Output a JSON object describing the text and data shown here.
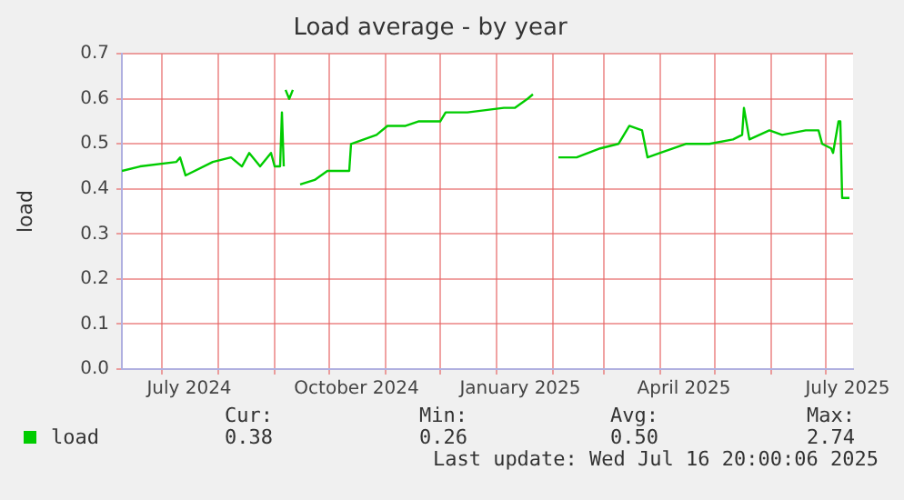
{
  "chart_data": {
    "type": "line",
    "title": "Load average - by year",
    "ylabel": "load",
    "x": [
      "2024-06-09",
      "2024-06-19",
      "2024-07-09",
      "2024-07-11",
      "2024-07-14",
      "2024-07-29",
      "2024-08-08",
      "2024-08-14",
      "2024-08-18",
      "2024-08-24",
      "2024-08-30",
      "2024-09-01",
      "2024-09-04",
      "2024-09-05",
      "2024-09-06",
      "2024-09-06T12:00",
      "2024-09-07",
      "2024-09-09",
      "2024-09-11",
      "2024-09-12",
      "2024-09-15",
      "2024-09-23",
      "2024-09-30",
      "2024-10-10",
      "2024-10-12",
      "2024-10-13",
      "2024-10-20",
      "2024-10-27",
      "2024-11-02",
      "2024-11-12",
      "2024-11-19",
      "2024-11-26",
      "2024-12-01",
      "2024-12-04",
      "2024-12-16",
      "2025-01-05",
      "2025-01-11",
      "2025-01-18",
      "2025-01-21",
      "2025-01-28",
      "2025-02-04",
      "2025-02-14",
      "2025-02-27",
      "2025-03-09",
      "2025-03-15",
      "2025-03-22",
      "2025-03-25",
      "2025-04-01",
      "2025-04-15",
      "2025-04-28",
      "2025-05-11",
      "2025-05-16",
      "2025-05-17",
      "2025-05-20",
      "2025-05-31",
      "2025-06-07",
      "2025-06-20",
      "2025-06-27",
      "2025-06-29",
      "2025-07-04",
      "2025-07-05",
      "2025-07-08",
      "2025-07-09",
      "2025-07-10",
      "2025-07-14"
    ],
    "series": [
      {
        "name": "load",
        "color": "#00cc00",
        "values": [
          0.44,
          0.45,
          0.46,
          0.47,
          0.43,
          0.46,
          0.47,
          0.45,
          0.48,
          0.45,
          0.48,
          0.45,
          0.45,
          0.57,
          0.45,
          null,
          0.62,
          0.6,
          0.62,
          null,
          0.41,
          0.42,
          0.44,
          0.44,
          0.44,
          0.5,
          0.51,
          0.52,
          0.54,
          0.54,
          0.55,
          0.55,
          0.55,
          0.57,
          0.57,
          0.58,
          0.58,
          0.6,
          0.61,
          null,
          0.47,
          0.47,
          0.49,
          0.5,
          0.54,
          0.53,
          0.47,
          0.48,
          0.5,
          0.5,
          0.51,
          0.52,
          0.58,
          0.51,
          0.53,
          0.52,
          0.53,
          0.53,
          0.5,
          0.49,
          0.48,
          0.55,
          0.55,
          0.38,
          0.38
        ]
      }
    ],
    "xlim": [
      "2024-06-09",
      "2025-07-16"
    ],
    "xticks": [
      {
        "value": "2024-07-01",
        "label": null
      },
      {
        "value": "2024-07-16",
        "label": "July 2024"
      },
      {
        "value": "2024-08-01",
        "label": null
      },
      {
        "value": "2024-09-01",
        "label": null
      },
      {
        "value": "2024-10-01",
        "label": null
      },
      {
        "value": "2024-10-16",
        "label": "October 2024"
      },
      {
        "value": "2024-11-01",
        "label": null
      },
      {
        "value": "2024-12-01",
        "label": null
      },
      {
        "value": "2025-01-01",
        "label": null
      },
      {
        "value": "2025-01-14",
        "label": "January 2025"
      },
      {
        "value": "2025-02-01",
        "label": null
      },
      {
        "value": "2025-03-01",
        "label": null
      },
      {
        "value": "2025-04-01",
        "label": null
      },
      {
        "value": "2025-04-14",
        "label": "April 2025"
      },
      {
        "value": "2025-05-01",
        "label": null
      },
      {
        "value": "2025-06-01",
        "label": null
      },
      {
        "value": "2025-07-01",
        "label": null
      },
      {
        "value": "2025-07-13",
        "label": "July 2025"
      }
    ],
    "ylim": [
      0,
      0.7
    ],
    "yticks": [
      {
        "value": 0,
        "label": "0.0"
      },
      {
        "value": 0.1,
        "label": "0.1"
      },
      {
        "value": 0.2,
        "label": "0.2"
      },
      {
        "value": 0.3,
        "label": "0.3"
      },
      {
        "value": 0.4,
        "label": "0.4"
      },
      {
        "value": 0.5,
        "label": "0.5"
      },
      {
        "value": 0.6,
        "label": "0.6"
      },
      {
        "value": 0.7,
        "label": "0.7"
      }
    ],
    "grid": true,
    "legend": "bottom left",
    "marker": "none",
    "line_style": "solid",
    "annotations": [
      "Cur:",
      "Min:",
      "Avg:",
      "Max:",
      "0.38",
      "0.26",
      "0.50",
      "2.74",
      "Last update: Wed Jul 16 20:00:06 2025"
    ]
  }
}
